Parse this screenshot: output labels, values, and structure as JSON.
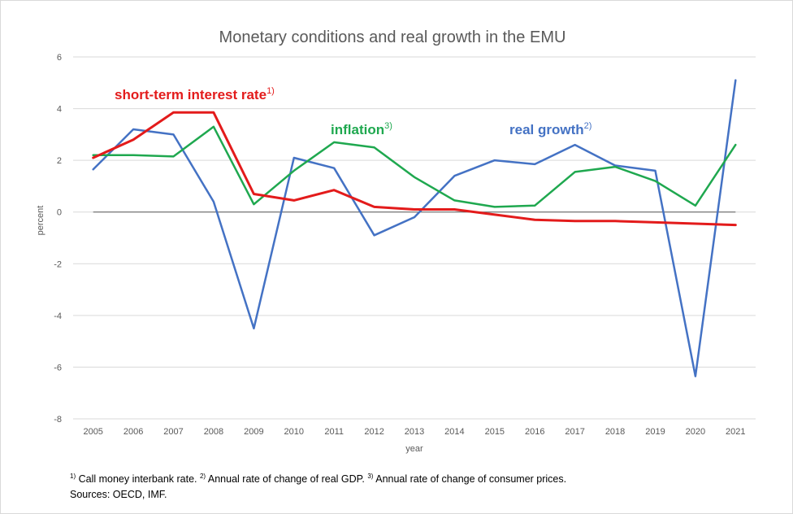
{
  "chart_data": {
    "type": "line",
    "title": "Monetary conditions and real growth in the EMU",
    "xlabel": "year",
    "ylabel": "percent",
    "x": [
      "2005",
      "2006",
      "2007",
      "2008",
      "2009",
      "2010",
      "2011",
      "2012",
      "2013",
      "2014",
      "2015",
      "2016",
      "2017",
      "2018",
      "2019",
      "2020",
      "2021"
    ],
    "ylim": [
      -8,
      6
    ],
    "yticks": [
      "6",
      "4",
      "2",
      "0",
      "-2",
      "-4",
      "-6",
      "-8"
    ],
    "grid": true,
    "series": [
      {
        "name": "real growth",
        "sup": "2)",
        "color": "#4472c4",
        "values": [
          1.65,
          3.2,
          3.0,
          0.4,
          -4.5,
          2.1,
          1.7,
          -0.9,
          -0.2,
          1.4,
          2.0,
          1.85,
          2.6,
          1.8,
          1.6,
          -6.35,
          5.1
        ]
      },
      {
        "name": "short-term  interest rate",
        "sup": "1)",
        "color": "#e31b1b",
        "values": [
          2.1,
          2.8,
          3.85,
          3.85,
          0.7,
          0.45,
          0.85,
          0.2,
          0.1,
          0.1,
          -0.1,
          -0.3,
          -0.35,
          -0.35,
          -0.4,
          -0.45,
          -0.5
        ]
      },
      {
        "name": "inflation",
        "sup": "3)",
        "color": "#1fa84f",
        "values": [
          2.2,
          2.2,
          2.15,
          3.3,
          0.3,
          1.6,
          2.7,
          2.5,
          1.35,
          0.45,
          0.2,
          0.25,
          1.55,
          1.75,
          1.2,
          0.25,
          2.6
        ]
      }
    ]
  },
  "footnotes": {
    "fn1_mark": "1)",
    "fn1_text": " Call money interbank rate. ",
    "fn2_mark": "2)",
    "fn2_text": " Annual rate of change of real GDP. ",
    "fn3_mark": "3)",
    "fn3_text": " Annual rate of change of consumer prices.",
    "sources": "Sources: OECD, IMF."
  }
}
